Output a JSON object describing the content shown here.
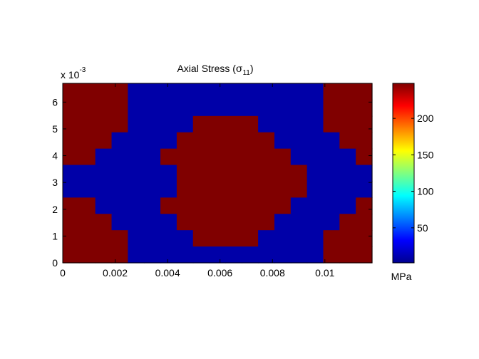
{
  "chart_data": {
    "type": "heatmap",
    "title": {
      "main": "Axial Stress (",
      "sym": "σ",
      "sub": "11",
      "close": ")"
    },
    "xlabel": "",
    "ylabel": "",
    "xlim": [
      0,
      0.0118
    ],
    "ylim": [
      0,
      0.0067
    ],
    "y_exponent": {
      "prefix": "x 10",
      "power": "-3"
    },
    "x_ticks": [
      {
        "value": 0,
        "label": "0"
      },
      {
        "value": 0.002,
        "label": "0.002"
      },
      {
        "value": 0.004,
        "label": "0.004"
      },
      {
        "value": 0.006,
        "label": "0.006"
      },
      {
        "value": 0.008,
        "label": "0.008"
      },
      {
        "value": 0.01,
        "label": "0.01"
      }
    ],
    "y_ticks": [
      {
        "value": 0,
        "label": "0"
      },
      {
        "value": 0.001,
        "label": "1"
      },
      {
        "value": 0.002,
        "label": "2"
      },
      {
        "value": 0.003,
        "label": "3"
      },
      {
        "value": 0.004,
        "label": "4"
      },
      {
        "value": 0.005,
        "label": "5"
      },
      {
        "value": 0.006,
        "label": "6"
      }
    ],
    "grid": false,
    "colormap": "jet",
    "colors": {
      "high": "#800000",
      "low": "#0000a8"
    },
    "values_mpa": {
      "high": 248,
      "low": 2
    },
    "grid_dims": {
      "cols": 19,
      "rows": 11
    },
    "mask_rows_top_to_bottom": [
      "HHHH000000000000HHH",
      "HHHH000000000000HHH",
      "HHHH0000HHHH0000HHH",
      "HHH0000HHHHHH0000HH",
      "HH0000HHHHHHHH0000H",
      "0000000HHHHHHHH0000",
      "0000000HHHHHHHH0000",
      "HH0000HHHHHHHH0000H",
      "HHH0000HHHHHH0000HH",
      "HHHH0000HHHH0000HHH",
      "HHHH000000000000HHH"
    ],
    "colorbar": {
      "range": [
        2,
        248
      ],
      "ticks": [
        {
          "value": 50,
          "label": "50"
        },
        {
          "value": 100,
          "label": "100"
        },
        {
          "value": 150,
          "label": "150"
        },
        {
          "value": 200,
          "label": "200"
        }
      ],
      "unit_label": "MPa"
    }
  }
}
